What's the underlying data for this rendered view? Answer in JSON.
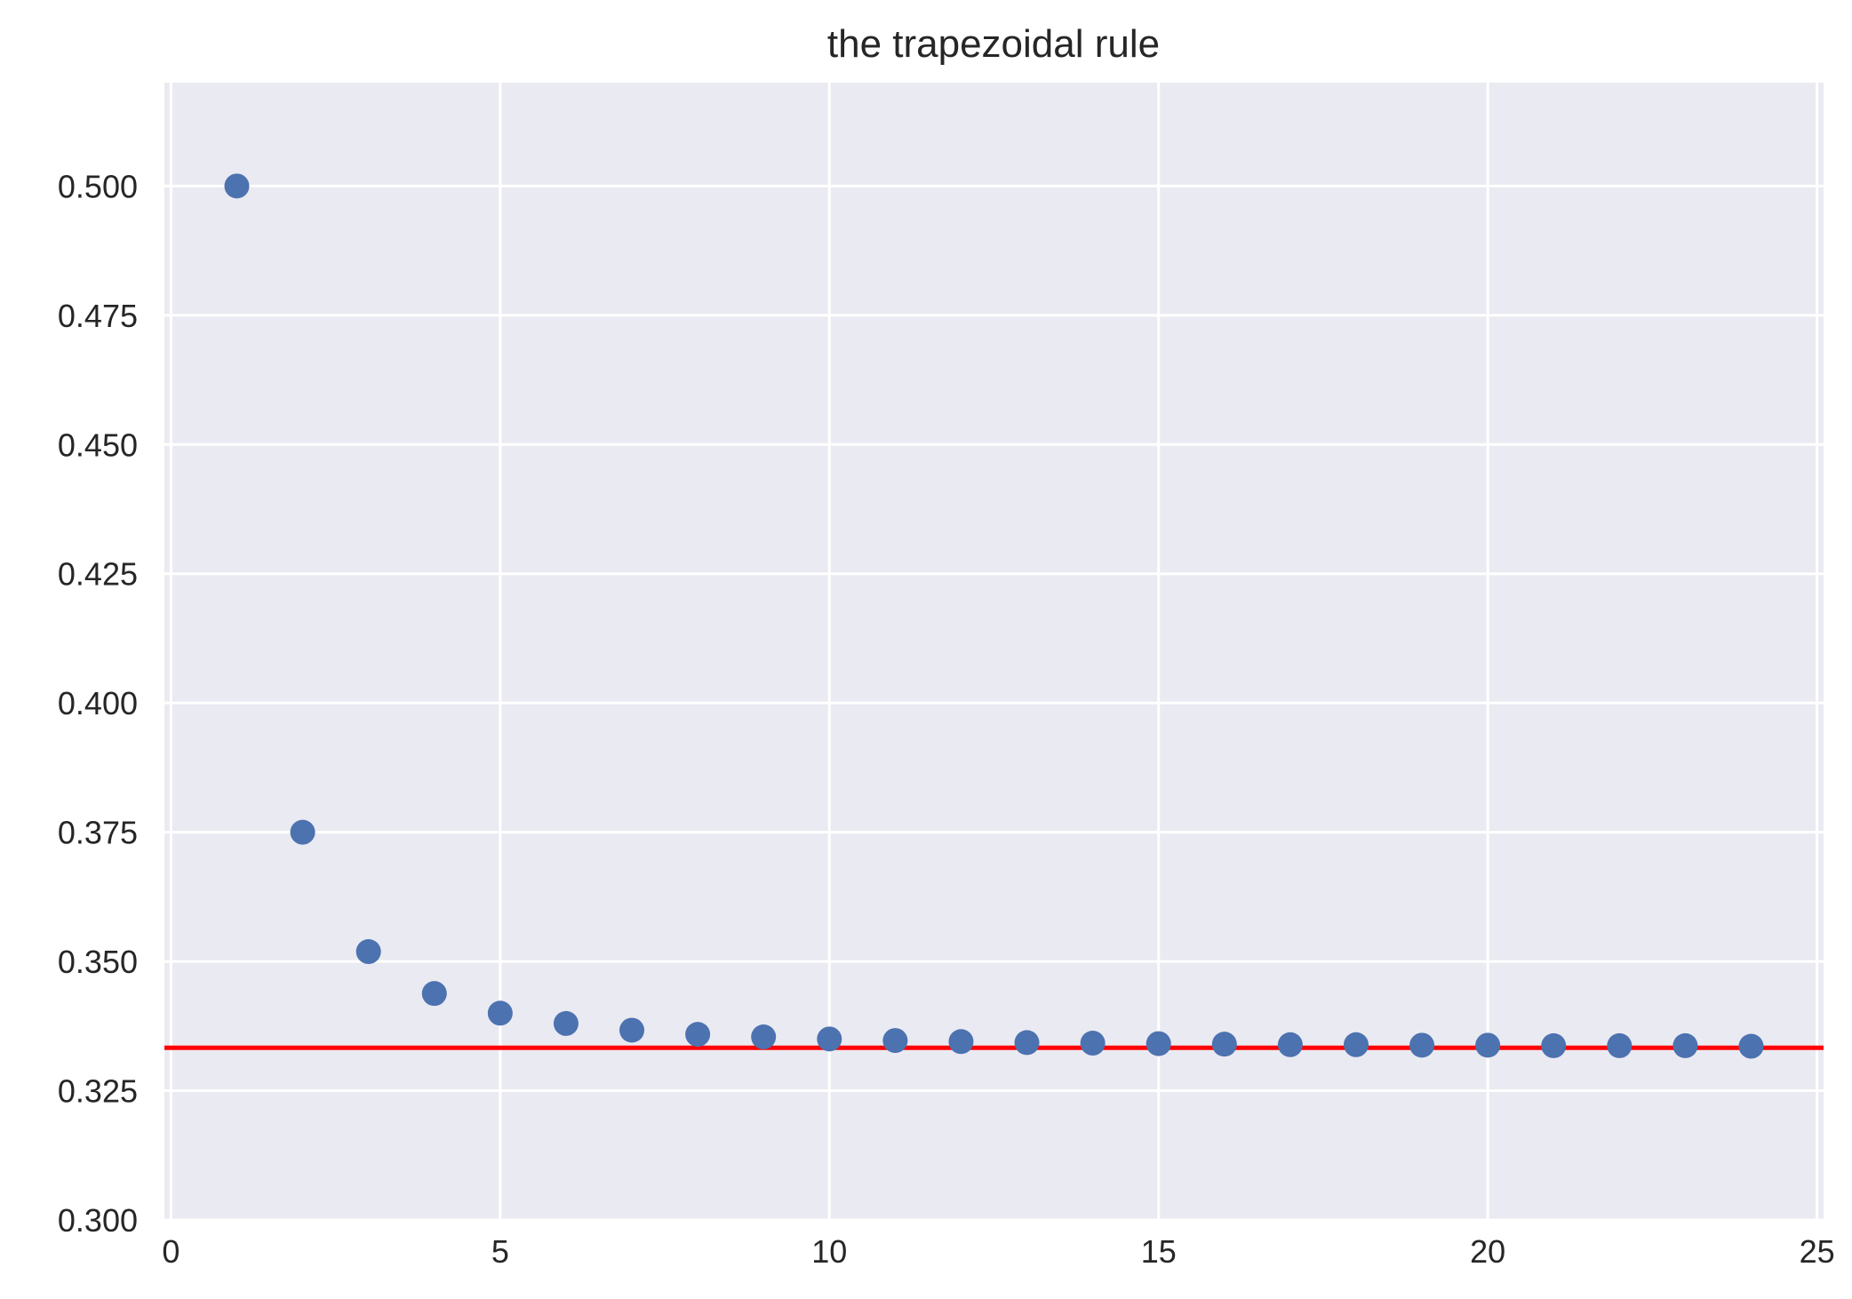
{
  "chart_data": {
    "type": "scatter",
    "title": "the trapezoidal rule",
    "xlabel": "",
    "ylabel": "",
    "xlim": [
      -0.1,
      25.1
    ],
    "ylim": [
      0.3,
      0.52
    ],
    "xticks": [
      0,
      5,
      10,
      15,
      20,
      25
    ],
    "xtick_labels": [
      "0",
      "5",
      "10",
      "15",
      "20",
      "25"
    ],
    "yticks": [
      0.3,
      0.325,
      0.35,
      0.375,
      0.4,
      0.425,
      0.45,
      0.475,
      0.5
    ],
    "ytick_labels": [
      "0.300",
      "0.325",
      "0.350",
      "0.375",
      "0.400",
      "0.425",
      "0.450",
      "0.475",
      "0.500"
    ],
    "grid": true,
    "background_color": "#eaeaf2",
    "series": [
      {
        "color": "#4c72b0",
        "x": [
          1,
          2,
          3,
          4,
          5,
          6,
          7,
          8,
          9,
          10,
          11,
          12,
          13,
          14,
          15,
          16,
          17,
          18,
          19,
          20,
          21,
          22,
          23,
          24
        ],
        "y": [
          0.5,
          0.375,
          0.3519,
          0.3438,
          0.34,
          0.338,
          0.3367,
          0.3359,
          0.3354,
          0.335,
          0.3347,
          0.3345,
          0.3343,
          0.3342,
          0.3341,
          0.334,
          0.3339,
          0.3339,
          0.3338,
          0.3338,
          0.3337,
          0.3337,
          0.3337,
          0.3336
        ]
      }
    ],
    "reference_lines": [
      {
        "orientation": "horizontal",
        "y": 0.3333,
        "color": "#ff0000"
      }
    ]
  }
}
